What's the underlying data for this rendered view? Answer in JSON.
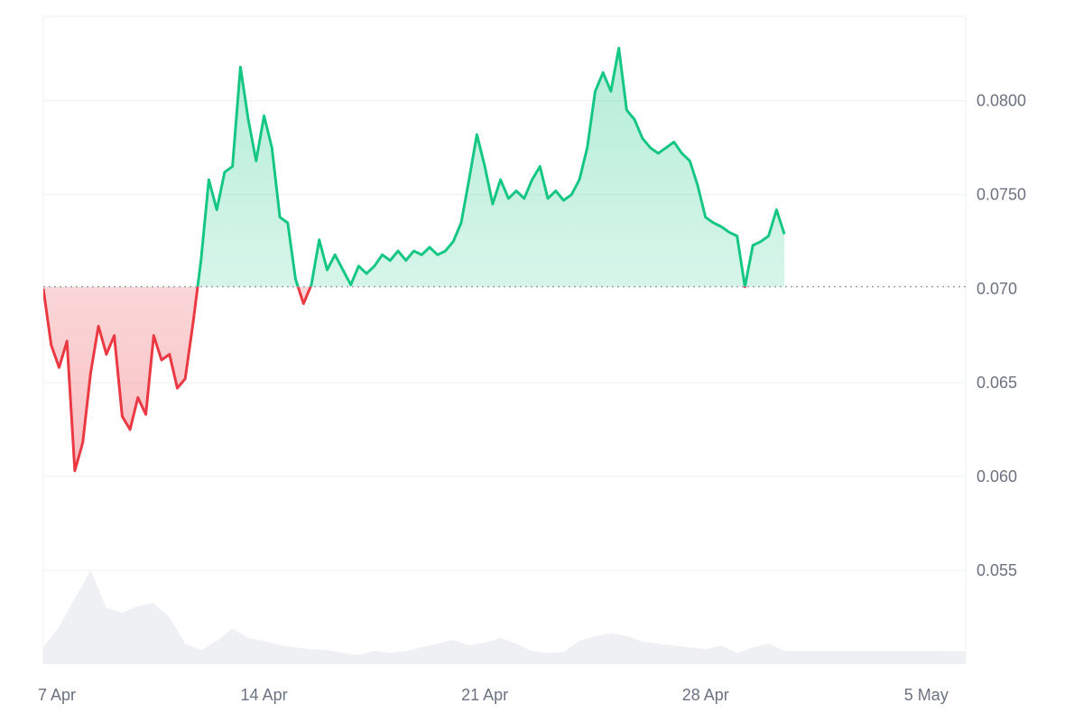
{
  "chart_data": {
    "type": "area",
    "baseline": 0.0701,
    "ylim": [
      0.05,
      0.0845
    ],
    "xlim": [
      "2024-04-07",
      "2024-05-06T06:00"
    ],
    "grid": true,
    "y_ticks": [
      {
        "value": 0.055,
        "label": "0.055"
      },
      {
        "value": 0.06,
        "label": "0.060"
      },
      {
        "value": 0.065,
        "label": "0.065"
      },
      {
        "value": 0.07,
        "label": "0.070"
      },
      {
        "value": 0.075,
        "label": "0.0750"
      },
      {
        "value": 0.08,
        "label": "0.0800"
      }
    ],
    "x_ticks": [
      {
        "value": "2024-04-07",
        "label": "7 Apr"
      },
      {
        "value": "2024-04-14",
        "label": "14 Apr"
      },
      {
        "value": "2024-04-21",
        "label": "21 Apr"
      },
      {
        "value": "2024-04-28",
        "label": "28 Apr"
      },
      {
        "value": "2024-05-05",
        "label": "5 May"
      }
    ],
    "colors": {
      "up": "#16c784",
      "down": "#ea3943",
      "up_fill": "#16c784",
      "down_fill": "#ea3943",
      "volume": "#eef0f4",
      "grid": "#eef0f4",
      "baseline": "#9ca3af"
    },
    "series": [
      {
        "values": [
          [
            "2024-04-07T00:00",
            0.07
          ],
          [
            "2024-04-07T06:00",
            0.067
          ],
          [
            "2024-04-07T12:00",
            0.0658
          ],
          [
            "2024-04-07T18:00",
            0.0672
          ],
          [
            "2024-04-08T00:00",
            0.0603
          ],
          [
            "2024-04-08T06:00",
            0.0618
          ],
          [
            "2024-04-08T12:00",
            0.0655
          ],
          [
            "2024-04-08T18:00",
            0.068
          ],
          [
            "2024-04-09T00:00",
            0.0665
          ],
          [
            "2024-04-09T06:00",
            0.0675
          ],
          [
            "2024-04-09T12:00",
            0.0632
          ],
          [
            "2024-04-09T18:00",
            0.0625
          ],
          [
            "2024-04-10T00:00",
            0.0642
          ],
          [
            "2024-04-10T06:00",
            0.0633
          ],
          [
            "2024-04-10T12:00",
            0.0675
          ],
          [
            "2024-04-10T18:00",
            0.0662
          ],
          [
            "2024-04-11T00:00",
            0.0665
          ],
          [
            "2024-04-11T06:00",
            0.0647
          ],
          [
            "2024-04-11T12:00",
            0.0652
          ],
          [
            "2024-04-11T18:00",
            0.0682
          ],
          [
            "2024-04-12T00:00",
            0.0715
          ],
          [
            "2024-04-12T06:00",
            0.0758
          ],
          [
            "2024-04-12T12:00",
            0.0742
          ],
          [
            "2024-04-12T18:00",
            0.0762
          ],
          [
            "2024-04-13T00:00",
            0.0765
          ],
          [
            "2024-04-13T06:00",
            0.0818
          ],
          [
            "2024-04-13T12:00",
            0.079
          ],
          [
            "2024-04-13T18:00",
            0.0768
          ],
          [
            "2024-04-14T00:00",
            0.0792
          ],
          [
            "2024-04-14T06:00",
            0.0775
          ],
          [
            "2024-04-14T12:00",
            0.0738
          ],
          [
            "2024-04-14T18:00",
            0.0735
          ],
          [
            "2024-04-15T00:00",
            0.0705
          ],
          [
            "2024-04-15T06:00",
            0.0692
          ],
          [
            "2024-04-15T12:00",
            0.0702
          ],
          [
            "2024-04-15T18:00",
            0.0726
          ],
          [
            "2024-04-16T00:00",
            0.071
          ],
          [
            "2024-04-16T06:00",
            0.0718
          ],
          [
            "2024-04-16T12:00",
            0.071
          ],
          [
            "2024-04-16T18:00",
            0.0702
          ],
          [
            "2024-04-17T00:00",
            0.0712
          ],
          [
            "2024-04-17T06:00",
            0.0708
          ],
          [
            "2024-04-17T12:00",
            0.0712
          ],
          [
            "2024-04-17T18:00",
            0.0718
          ],
          [
            "2024-04-18T00:00",
            0.0715
          ],
          [
            "2024-04-18T06:00",
            0.072
          ],
          [
            "2024-04-18T12:00",
            0.0715
          ],
          [
            "2024-04-18T18:00",
            0.072
          ],
          [
            "2024-04-19T00:00",
            0.0718
          ],
          [
            "2024-04-19T06:00",
            0.0722
          ],
          [
            "2024-04-19T12:00",
            0.0718
          ],
          [
            "2024-04-19T18:00",
            0.072
          ],
          [
            "2024-04-20T00:00",
            0.0725
          ],
          [
            "2024-04-20T06:00",
            0.0735
          ],
          [
            "2024-04-20T12:00",
            0.0758
          ],
          [
            "2024-04-20T18:00",
            0.0782
          ],
          [
            "2024-04-21T00:00",
            0.0765
          ],
          [
            "2024-04-21T06:00",
            0.0745
          ],
          [
            "2024-04-21T12:00",
            0.0758
          ],
          [
            "2024-04-21T18:00",
            0.0748
          ],
          [
            "2024-04-22T00:00",
            0.0752
          ],
          [
            "2024-04-22T06:00",
            0.0748
          ],
          [
            "2024-04-22T12:00",
            0.0758
          ],
          [
            "2024-04-22T18:00",
            0.0765
          ],
          [
            "2024-04-23T00:00",
            0.0748
          ],
          [
            "2024-04-23T06:00",
            0.0752
          ],
          [
            "2024-04-23T12:00",
            0.0747
          ],
          [
            "2024-04-23T18:00",
            0.075
          ],
          [
            "2024-04-24T00:00",
            0.0758
          ],
          [
            "2024-04-24T06:00",
            0.0775
          ],
          [
            "2024-04-24T12:00",
            0.0805
          ],
          [
            "2024-04-24T18:00",
            0.0815
          ],
          [
            "2024-04-25T00:00",
            0.0805
          ],
          [
            "2024-04-25T06:00",
            0.0828
          ],
          [
            "2024-04-25T12:00",
            0.0795
          ],
          [
            "2024-04-25T18:00",
            0.079
          ],
          [
            "2024-04-26T00:00",
            0.078
          ],
          [
            "2024-04-26T06:00",
            0.0775
          ],
          [
            "2024-04-26T12:00",
            0.0772
          ],
          [
            "2024-04-26T18:00",
            0.0775
          ],
          [
            "2024-04-27T00:00",
            0.0778
          ],
          [
            "2024-04-27T06:00",
            0.0772
          ],
          [
            "2024-04-27T12:00",
            0.0768
          ],
          [
            "2024-04-27T18:00",
            0.0755
          ],
          [
            "2024-04-28T00:00",
            0.0738
          ],
          [
            "2024-04-28T06:00",
            0.0735
          ],
          [
            "2024-04-28T12:00",
            0.0733
          ],
          [
            "2024-04-28T18:00",
            0.073
          ],
          [
            "2024-04-29T00:00",
            0.0728
          ],
          [
            "2024-04-29T06:00",
            0.0701
          ],
          [
            "2024-04-29T12:00",
            0.0723
          ],
          [
            "2024-04-29T18:00",
            0.0725
          ],
          [
            "2024-04-30T00:00",
            0.0728
          ],
          [
            "2024-04-30T06:00",
            0.0742
          ],
          [
            "2024-04-30T12:00",
            0.0729
          ]
        ]
      }
    ],
    "volume": [
      [
        "2024-04-07T00:00",
        0.18
      ],
      [
        "2024-04-07T12:00",
        0.4
      ],
      [
        "2024-04-08T00:00",
        0.7
      ],
      [
        "2024-04-08T12:00",
        1.0
      ],
      [
        "2024-04-09T00:00",
        0.6
      ],
      [
        "2024-04-09T12:00",
        0.55
      ],
      [
        "2024-04-10T00:00",
        0.62
      ],
      [
        "2024-04-10T12:00",
        0.65
      ],
      [
        "2024-04-11T00:00",
        0.5
      ],
      [
        "2024-04-11T12:00",
        0.22
      ],
      [
        "2024-04-12T00:00",
        0.15
      ],
      [
        "2024-04-12T12:00",
        0.25
      ],
      [
        "2024-04-13T00:00",
        0.38
      ],
      [
        "2024-04-13T12:00",
        0.28
      ],
      [
        "2024-04-14T00:00",
        0.25
      ],
      [
        "2024-04-14T12:00",
        0.2
      ],
      [
        "2024-04-15T00:00",
        0.18
      ],
      [
        "2024-04-15T12:00",
        0.16
      ],
      [
        "2024-04-16T00:00",
        0.15
      ],
      [
        "2024-04-16T12:00",
        0.12
      ],
      [
        "2024-04-17T00:00",
        0.1
      ],
      [
        "2024-04-17T12:00",
        0.14
      ],
      [
        "2024-04-18T00:00",
        0.12
      ],
      [
        "2024-04-18T12:00",
        0.14
      ],
      [
        "2024-04-19T00:00",
        0.18
      ],
      [
        "2024-04-19T12:00",
        0.22
      ],
      [
        "2024-04-20T00:00",
        0.26
      ],
      [
        "2024-04-20T12:00",
        0.2
      ],
      [
        "2024-04-21T00:00",
        0.23
      ],
      [
        "2024-04-21T12:00",
        0.28
      ],
      [
        "2024-04-22T00:00",
        0.22
      ],
      [
        "2024-04-22T12:00",
        0.14
      ],
      [
        "2024-04-23T00:00",
        0.12
      ],
      [
        "2024-04-23T12:00",
        0.13
      ],
      [
        "2024-04-24T00:00",
        0.25
      ],
      [
        "2024-04-24T12:00",
        0.3
      ],
      [
        "2024-04-25T00:00",
        0.33
      ],
      [
        "2024-04-25T12:00",
        0.3
      ],
      [
        "2024-04-26T00:00",
        0.24
      ],
      [
        "2024-04-26T12:00",
        0.22
      ],
      [
        "2024-04-27T00:00",
        0.2
      ],
      [
        "2024-04-27T12:00",
        0.18
      ],
      [
        "2024-04-28T00:00",
        0.16
      ],
      [
        "2024-04-28T12:00",
        0.2
      ],
      [
        "2024-04-29T00:00",
        0.12
      ],
      [
        "2024-04-29T12:00",
        0.18
      ],
      [
        "2024-04-30T00:00",
        0.22
      ],
      [
        "2024-04-30T12:00",
        0.14
      ]
    ]
  }
}
